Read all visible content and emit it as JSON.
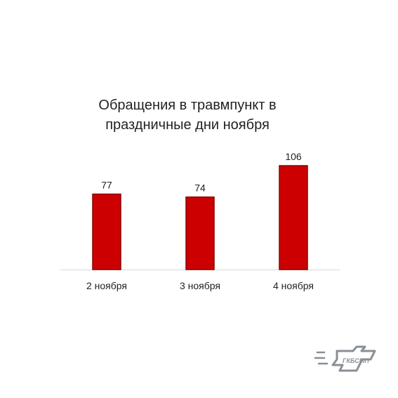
{
  "chart_data": {
    "type": "bar",
    "title_lines": [
      "Обращения в травмпункт в",
      "праздничные дни ноября"
    ],
    "categories": [
      "2 ноября",
      "3 ноября",
      "4 ноября"
    ],
    "values": [
      77,
      74,
      106
    ],
    "data_labels": [
      "77",
      "74",
      "106"
    ],
    "bar_color": "#cc0000",
    "bar_edge_color": "#8a0000",
    "ylim": [
      0,
      106
    ],
    "grid": false,
    "legend": "none"
  },
  "logo": {
    "text": "ГКБСМП",
    "color": "#8a8f96"
  }
}
